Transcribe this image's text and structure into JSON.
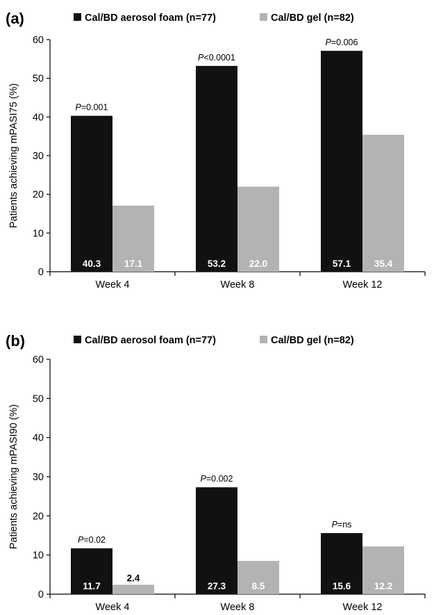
{
  "colors": {
    "foam": "#111111",
    "gel": "#b3b3b3"
  },
  "chart_data": [
    {
      "type": "bar",
      "panel_label": "(a)",
      "categories": [
        "Week 4",
        "Week 8",
        "Week 12"
      ],
      "series": [
        {
          "name": "Cal/BD aerosol foam (n=77)",
          "values": [
            40.3,
            53.2,
            57.1
          ],
          "labels": [
            "40.3",
            "53.2",
            "57.1"
          ]
        },
        {
          "name": "Cal/BD gel (n=82)",
          "values": [
            17.1,
            22.0,
            35.4
          ],
          "labels": [
            "17.1",
            "22.0",
            "35.4"
          ]
        }
      ],
      "p_values": [
        {
          "prefix": "P",
          "text": "=0.001"
        },
        {
          "prefix": "P",
          "text": "<0.0001"
        },
        {
          "prefix": "P",
          "text": "=0.006"
        }
      ],
      "ylabel": "Patients achieving mPASI75 (%)",
      "ylim": [
        0,
        60
      ],
      "yticks": [
        0,
        10,
        20,
        30,
        40,
        50,
        60
      ],
      "legend_position": "top"
    },
    {
      "type": "bar",
      "panel_label": "(b)",
      "categories": [
        "Week 4",
        "Week 8",
        "Week 12"
      ],
      "series": [
        {
          "name": "Cal/BD aerosol foam (n=77)",
          "values": [
            11.7,
            27.3,
            15.6
          ],
          "labels": [
            "11.7",
            "27.3",
            "15.6"
          ]
        },
        {
          "name": "Cal/BD gel (n=82)",
          "values": [
            2.4,
            8.5,
            12.2
          ],
          "labels": [
            "2.4",
            "8.5",
            "12.2"
          ]
        }
      ],
      "p_values": [
        {
          "prefix": "P",
          "text": "=0.02"
        },
        {
          "prefix": "P",
          "text": "=0.002"
        },
        {
          "prefix": "P",
          "text": "=ns"
        }
      ],
      "ylabel": "Patients achieving mPASI90 (%)",
      "ylim": [
        0,
        60
      ],
      "yticks": [
        0,
        10,
        20,
        30,
        40,
        50,
        60
      ],
      "legend_position": "top"
    }
  ]
}
